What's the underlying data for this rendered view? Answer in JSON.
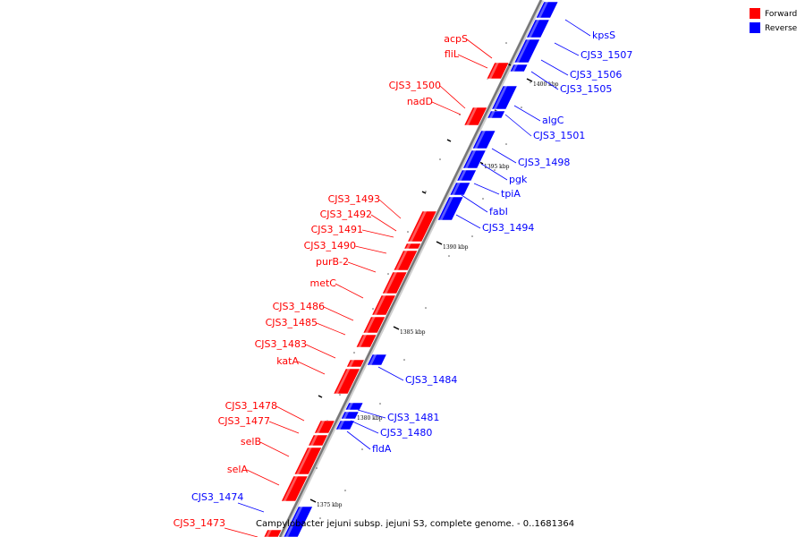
{
  "legend": {
    "forward": {
      "label": "Forward",
      "color": "#ff0000"
    },
    "reverse": {
      "label": "Reverse",
      "color": "#0000ff"
    }
  },
  "caption": "Campylobacter jejuni subsp. jejuni S3, complete genome. - 0..1681364",
  "ticks": [
    {
      "label": "1400 kbp"
    },
    {
      "label": "1395 kbp"
    },
    {
      "label": "1390 kbp"
    },
    {
      "label": "1385 kbp"
    },
    {
      "label": "1380 kbp"
    },
    {
      "label": "1375 kbp"
    }
  ],
  "forward_labels": [
    "acpS",
    "fliL",
    "CJS3_1500",
    "nadD",
    "CJS3_1493",
    "CJS3_1492",
    "CJS3_1491",
    "CJS3_1490",
    "purB-2",
    "metC",
    "CJS3_1486",
    "CJS3_1485",
    "CJS3_1483",
    "katA",
    "CJS3_1478",
    "CJS3_1477",
    "selB",
    "selA",
    "CJS3_1473"
  ],
  "reverse_labels": [
    "kpsS",
    "CJS3_1507",
    "CJS3_1506",
    "CJS3_1505",
    "algC",
    "CJS3_1501",
    "CJS3_1498",
    "pgk",
    "tpiA",
    "fabI",
    "CJS3_1494",
    "CJS3_1484",
    "CJS3_1481",
    "CJS3_1480",
    "fldA",
    "CJS3_1474"
  ]
}
